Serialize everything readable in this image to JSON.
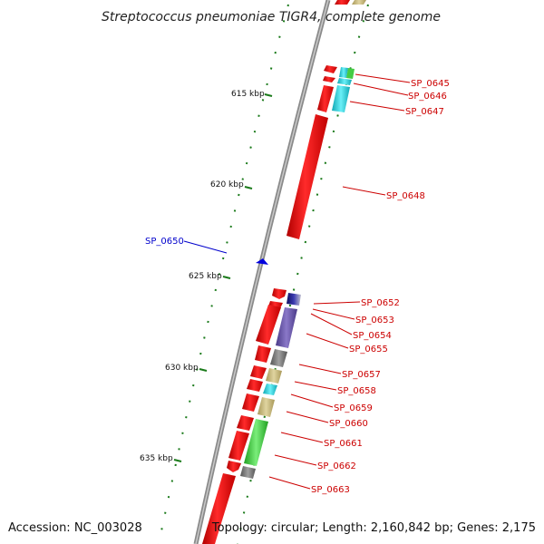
{
  "title": "Streptococcus pneumoniae TIGR4, complete genome",
  "footer": {
    "accession": "Accession: NC_003028",
    "topology": "Topology: circular; Length: 2,160,842 bp; Genes: 2,175"
  },
  "colors": {
    "backbone": "#8a8a8a",
    "gene_red": "#ff1111",
    "label_red": "#cc0000",
    "label_blue": "#0000cc",
    "tick_green": "#1a7a1a",
    "cyan": "#22d4e0",
    "tan": "#c8b87a",
    "purple": "#6a58a8",
    "gray": "#7a7a7a",
    "green": "#44cc44",
    "navy": "#1a1a80"
  },
  "kbp_marks": [
    "615 kbp",
    "620 kbp",
    "625 kbp",
    "630 kbp",
    "635 kbp"
  ],
  "gene_labels": [
    {
      "text": "SP_0645",
      "color": "red"
    },
    {
      "text": "SP_0646",
      "color": "red"
    },
    {
      "text": "SP_0647",
      "color": "red"
    },
    {
      "text": "SP_0648",
      "color": "red"
    },
    {
      "text": "SP_0650",
      "color": "blue"
    },
    {
      "text": "SP_0652",
      "color": "red"
    },
    {
      "text": "SP_0653",
      "color": "red"
    },
    {
      "text": "SP_0654",
      "color": "red"
    },
    {
      "text": "SP_0655",
      "color": "red"
    },
    {
      "text": "SP_0657",
      "color": "red"
    },
    {
      "text": "SP_0658",
      "color": "red"
    },
    {
      "text": "SP_0659",
      "color": "red"
    },
    {
      "text": "SP_0660",
      "color": "red"
    },
    {
      "text": "SP_0661",
      "color": "red"
    },
    {
      "text": "SP_0662",
      "color": "red"
    },
    {
      "text": "SP_0663",
      "color": "red"
    }
  ]
}
